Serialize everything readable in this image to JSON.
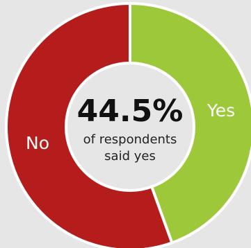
{
  "chart_data": {
    "type": "pie",
    "variant": "donut",
    "title": "",
    "slices": [
      {
        "label": "Yes",
        "value": 44.5,
        "color": "#9dc83a"
      },
      {
        "label": "No",
        "value": 55.5,
        "color": "#b51c1c"
      }
    ],
    "center": {
      "value_text": "44.5%",
      "caption_line1": "of respondents",
      "caption_line2": "said yes"
    }
  },
  "colors": {
    "background": "#e6e6e6",
    "center_fill": "#e6e6e6",
    "separator": "#ffffff"
  }
}
